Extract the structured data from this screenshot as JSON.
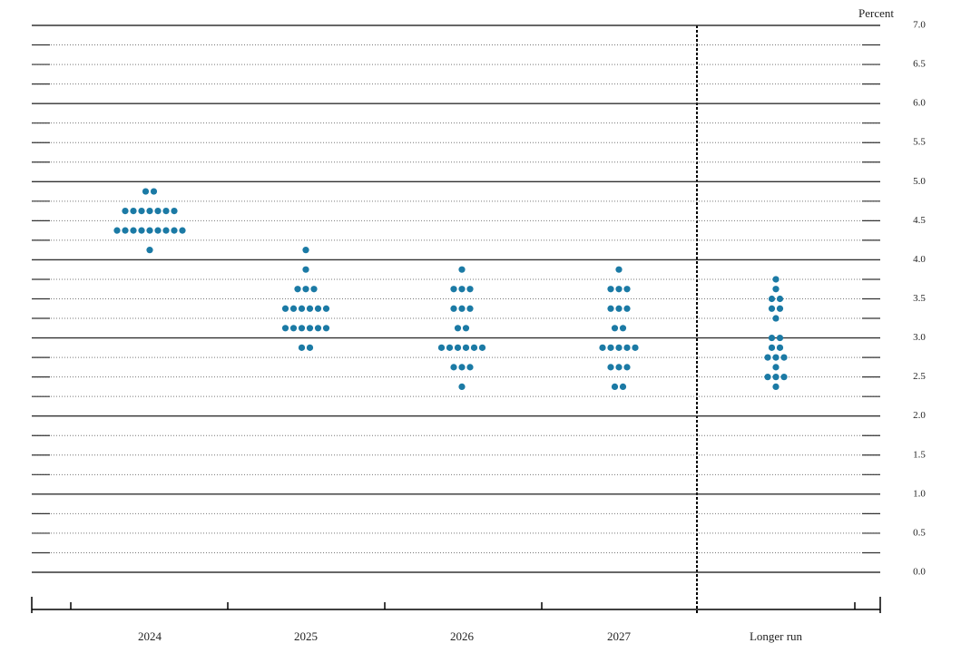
{
  "chart_data": {
    "type": "dot",
    "y_label": "Percent",
    "color": "#1b7aa5",
    "categories": [
      "2024",
      "2025",
      "2026",
      "2027",
      "Longer run"
    ],
    "dots": [
      [
        {
          "rate": 4.875,
          "count": 2
        },
        {
          "rate": 4.625,
          "count": 7
        },
        {
          "rate": 4.375,
          "count": 9
        },
        {
          "rate": 4.125,
          "count": 1
        }
      ],
      [
        {
          "rate": 4.125,
          "count": 1
        },
        {
          "rate": 3.875,
          "count": 1
        },
        {
          "rate": 3.625,
          "count": 3
        },
        {
          "rate": 3.375,
          "count": 6
        },
        {
          "rate": 3.125,
          "count": 6
        },
        {
          "rate": 2.875,
          "count": 2
        }
      ],
      [
        {
          "rate": 3.875,
          "count": 1
        },
        {
          "rate": 3.625,
          "count": 3
        },
        {
          "rate": 3.375,
          "count": 3
        },
        {
          "rate": 3.125,
          "count": 2
        },
        {
          "rate": 2.875,
          "count": 6
        },
        {
          "rate": 2.625,
          "count": 3
        },
        {
          "rate": 2.375,
          "count": 1
        }
      ],
      [
        {
          "rate": 3.875,
          "count": 1
        },
        {
          "rate": 3.625,
          "count": 3
        },
        {
          "rate": 3.375,
          "count": 3
        },
        {
          "rate": 3.125,
          "count": 2
        },
        {
          "rate": 2.875,
          "count": 5
        },
        {
          "rate": 2.625,
          "count": 3
        },
        {
          "rate": 2.375,
          "count": 2
        }
      ],
      [
        {
          "rate": 3.75,
          "count": 1
        },
        {
          "rate": 3.625,
          "count": 1
        },
        {
          "rate": 3.5,
          "count": 2
        },
        {
          "rate": 3.375,
          "count": 2
        },
        {
          "rate": 3.25,
          "count": 1
        },
        {
          "rate": 3.0,
          "count": 2
        },
        {
          "rate": 2.875,
          "count": 2
        },
        {
          "rate": 2.75,
          "count": 3
        },
        {
          "rate": 2.625,
          "count": 1
        },
        {
          "rate": 2.5,
          "count": 3
        },
        {
          "rate": 2.375,
          "count": 1
        }
      ]
    ],
    "ylim": [
      0,
      7
    ],
    "yticks": [
      {
        "value": 0,
        "label": "0.0"
      },
      0.5,
      {
        "value": 1,
        "label": "1.0"
      },
      1.5,
      {
        "value": 2,
        "label": "2.0"
      },
      2.5,
      {
        "value": 3,
        "label": "3.0"
      },
      3.5,
      {
        "value": 4,
        "label": "4.0"
      },
      4.5,
      {
        "value": 5,
        "label": "5.0"
      },
      5.5,
      {
        "value": 6,
        "label": "6.0"
      },
      6.5,
      {
        "value": 7,
        "label": "7.0"
      }
    ],
    "minor_yticks": [
      0.25,
      0.75,
      1.25,
      1.75,
      2.25,
      2.75,
      3.25,
      3.75,
      4.25,
      4.75,
      5.25,
      5.75,
      6.25,
      6.75
    ]
  }
}
